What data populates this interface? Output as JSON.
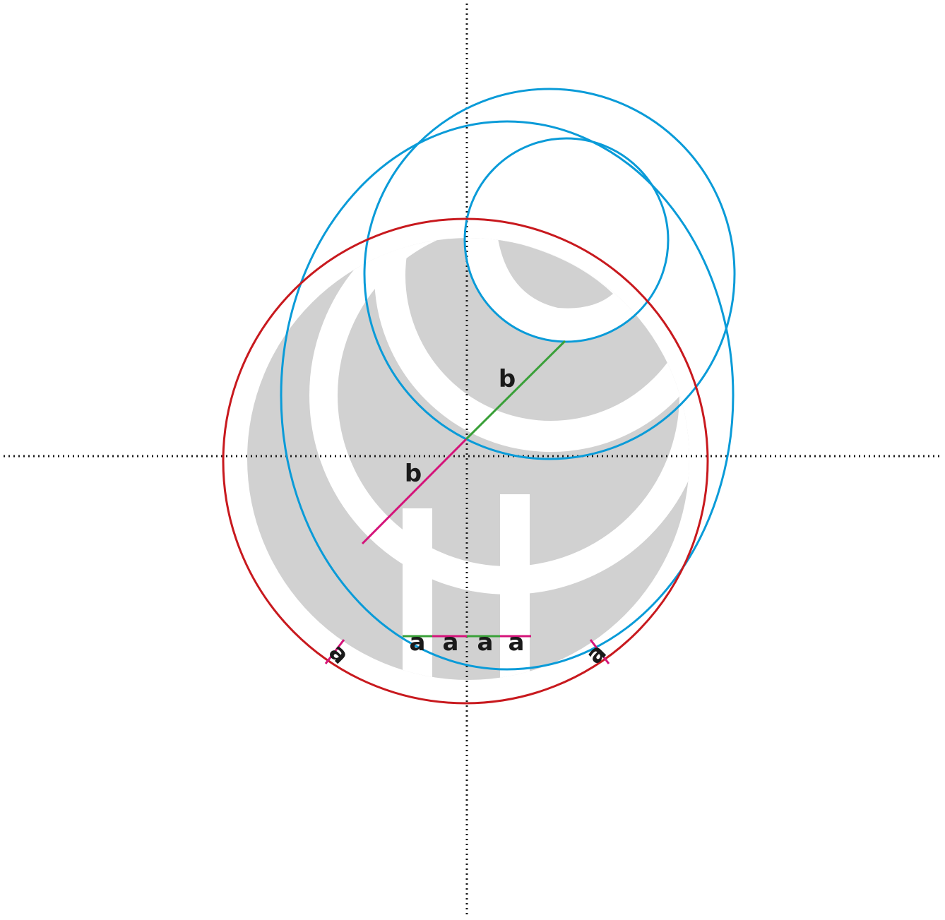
{
  "labels": {
    "b_upper": "b",
    "b_lower": "b",
    "a1": "a",
    "a2": "a",
    "a3": "a",
    "a4": "a",
    "a_left": "a",
    "a_right": "a"
  },
  "colors": {
    "logo_fill": "#d1d1d1",
    "outer_circle": "#c8191e",
    "construction_circles": "#0a9bd8",
    "green_measure": "#3aa039",
    "magenta_measure": "#d4147a",
    "axes": "#1a1a1a",
    "label_text": "#1a1a1a"
  }
}
